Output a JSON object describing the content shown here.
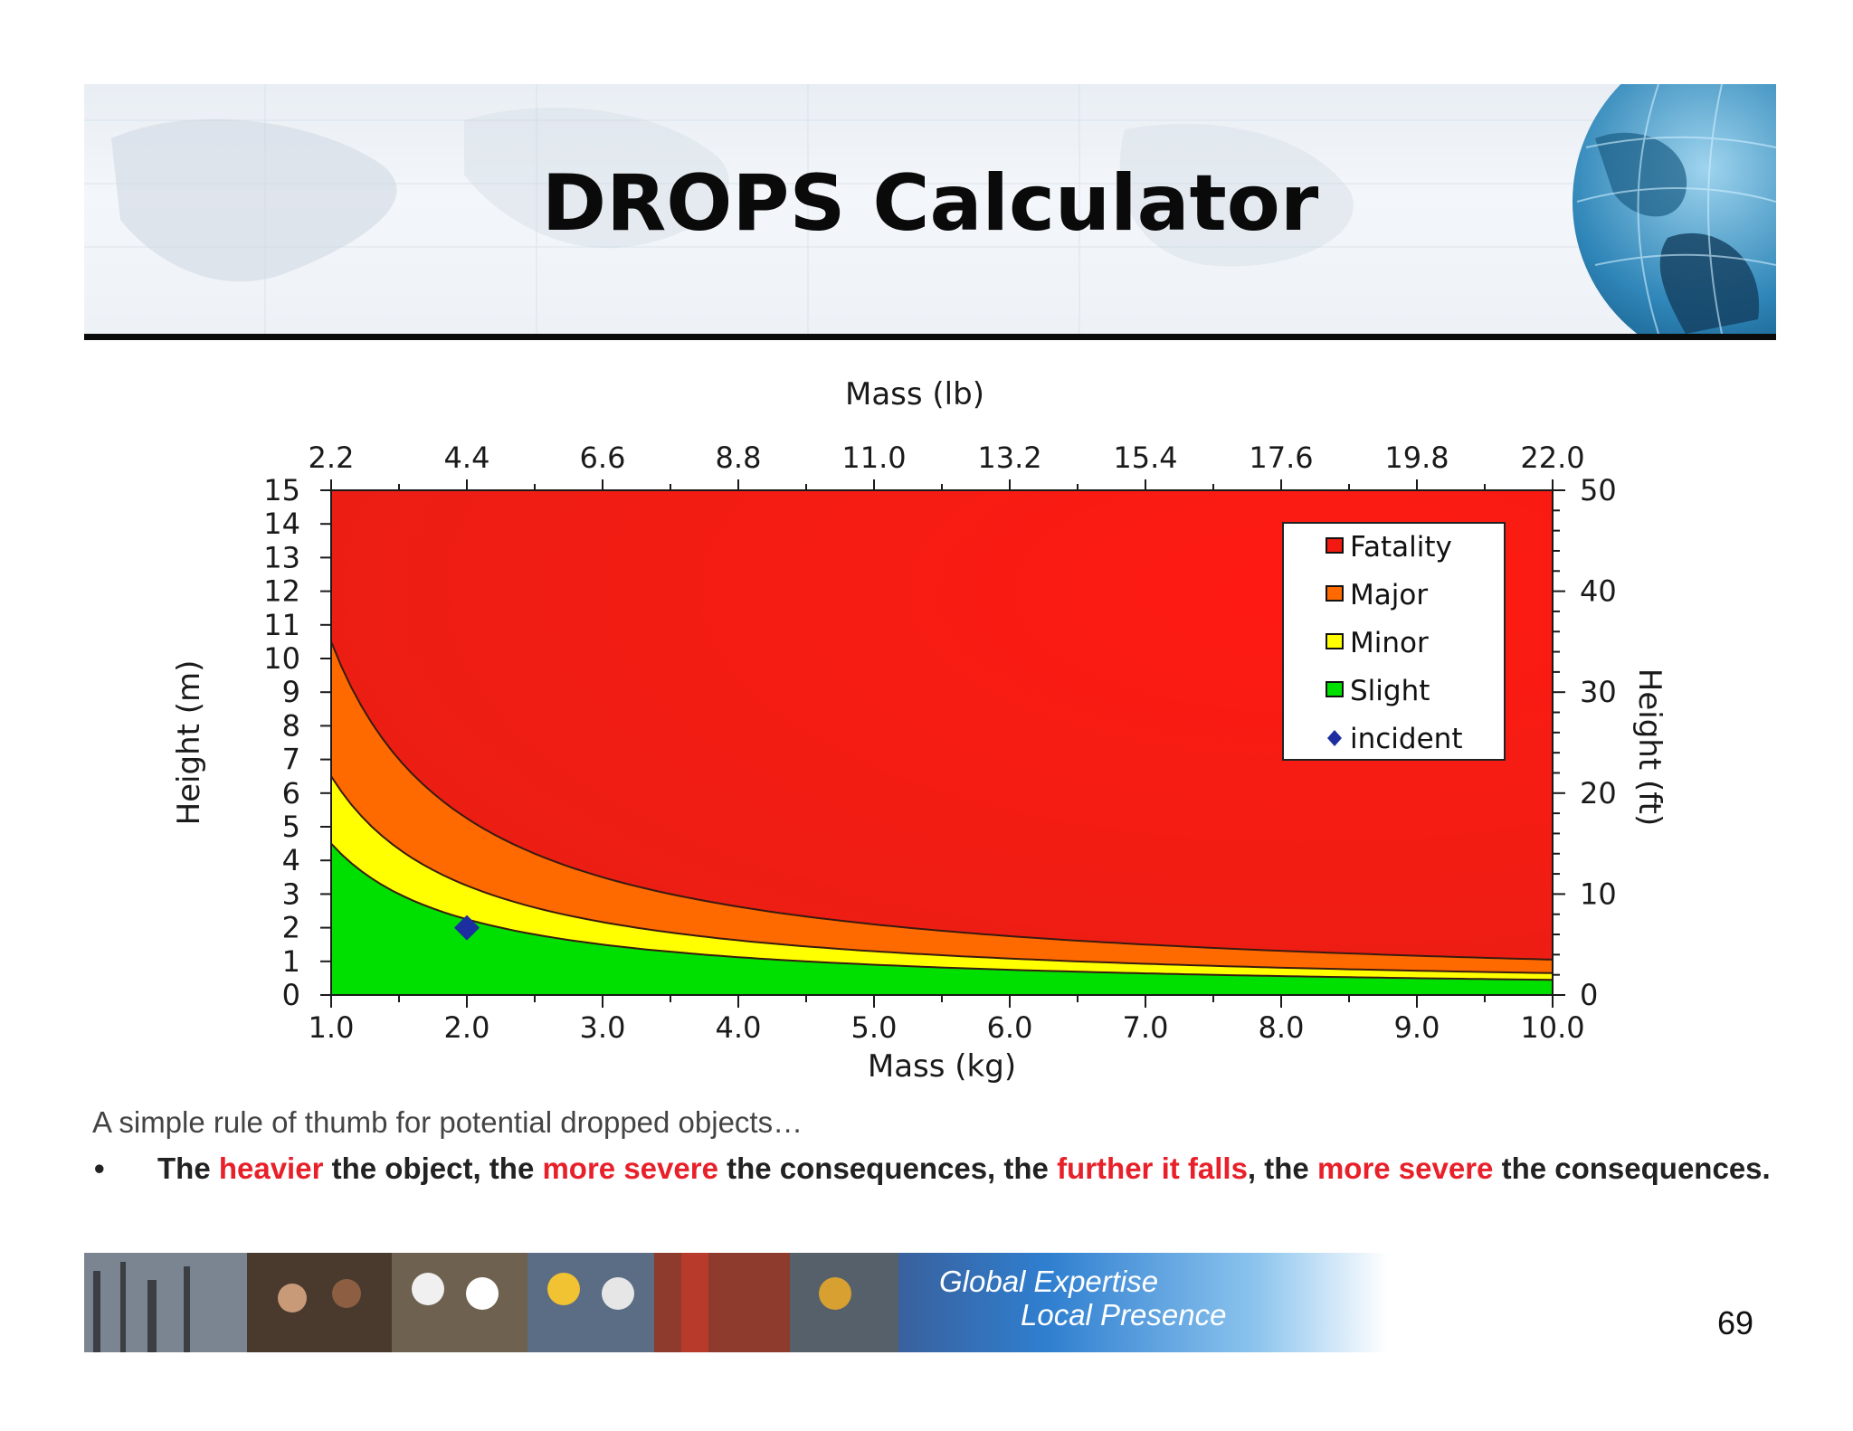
{
  "slide": {
    "title": "DROPS Calculator",
    "caption": "A simple rule of thumb for potential dropped objects…",
    "bullet_parts": [
      {
        "text": "The ",
        "red": false
      },
      {
        "text": "heavier",
        "red": true
      },
      {
        "text": " the object, the ",
        "red": false
      },
      {
        "text": "more severe",
        "red": true
      },
      {
        "text": " the consequences, the ",
        "red": false
      },
      {
        "text": "further it falls",
        "red": true
      },
      {
        "text": ", the ",
        "red": false
      },
      {
        "text": "more severe",
        "red": true
      },
      {
        "text": " the consequences.",
        "red": false
      }
    ],
    "bullet_symbol": "•",
    "footer_tagline_1": "Global Expertise",
    "footer_tagline_2": "Local Presence",
    "page_number": "69"
  },
  "chart_data": {
    "type": "area",
    "title": "",
    "xlabel": "Mass (kg)",
    "x2label": "Mass (lb)",
    "ylabel": "Height (m)",
    "y2label": "Height (ft)",
    "xlim": [
      1,
      10
    ],
    "ylim": [
      0,
      15
    ],
    "y2lim": [
      0,
      50
    ],
    "x_ticks": [
      "1.0",
      "2.0",
      "3.0",
      "4.0",
      "5.0",
      "6.0",
      "7.0",
      "8.0",
      "9.0",
      "10.0"
    ],
    "x2_ticks": [
      "2.2",
      "4.4",
      "6.6",
      "8.8",
      "11.0",
      "13.2",
      "15.4",
      "17.6",
      "19.8",
      "22.0"
    ],
    "y_ticks": [
      "0",
      "1",
      "2",
      "3",
      "4",
      "5",
      "6",
      "7",
      "8",
      "9",
      "10",
      "11",
      "12",
      "13",
      "14",
      "15"
    ],
    "y2_ticks": [
      "0",
      "10",
      "20",
      "30",
      "40",
      "50"
    ],
    "series": [
      {
        "name": "Fatality",
        "color": "#f21a10",
        "boundary_coef": null
      },
      {
        "name": "Major",
        "color": "#ff6a00",
        "boundary_coef": 10.5
      },
      {
        "name": "Minor",
        "color": "#ffff00",
        "boundary_coef": 6.5
      },
      {
        "name": "Slight",
        "color": "#00e000",
        "boundary_coef": 4.5
      }
    ],
    "boundary_note": "severity boundaries follow height = coef / mass (kg)",
    "incident": {
      "name": "incident",
      "mass_kg": 2.0,
      "height_m": 2.0,
      "color": "#1c2ea0"
    },
    "legend_position": "top-right"
  }
}
